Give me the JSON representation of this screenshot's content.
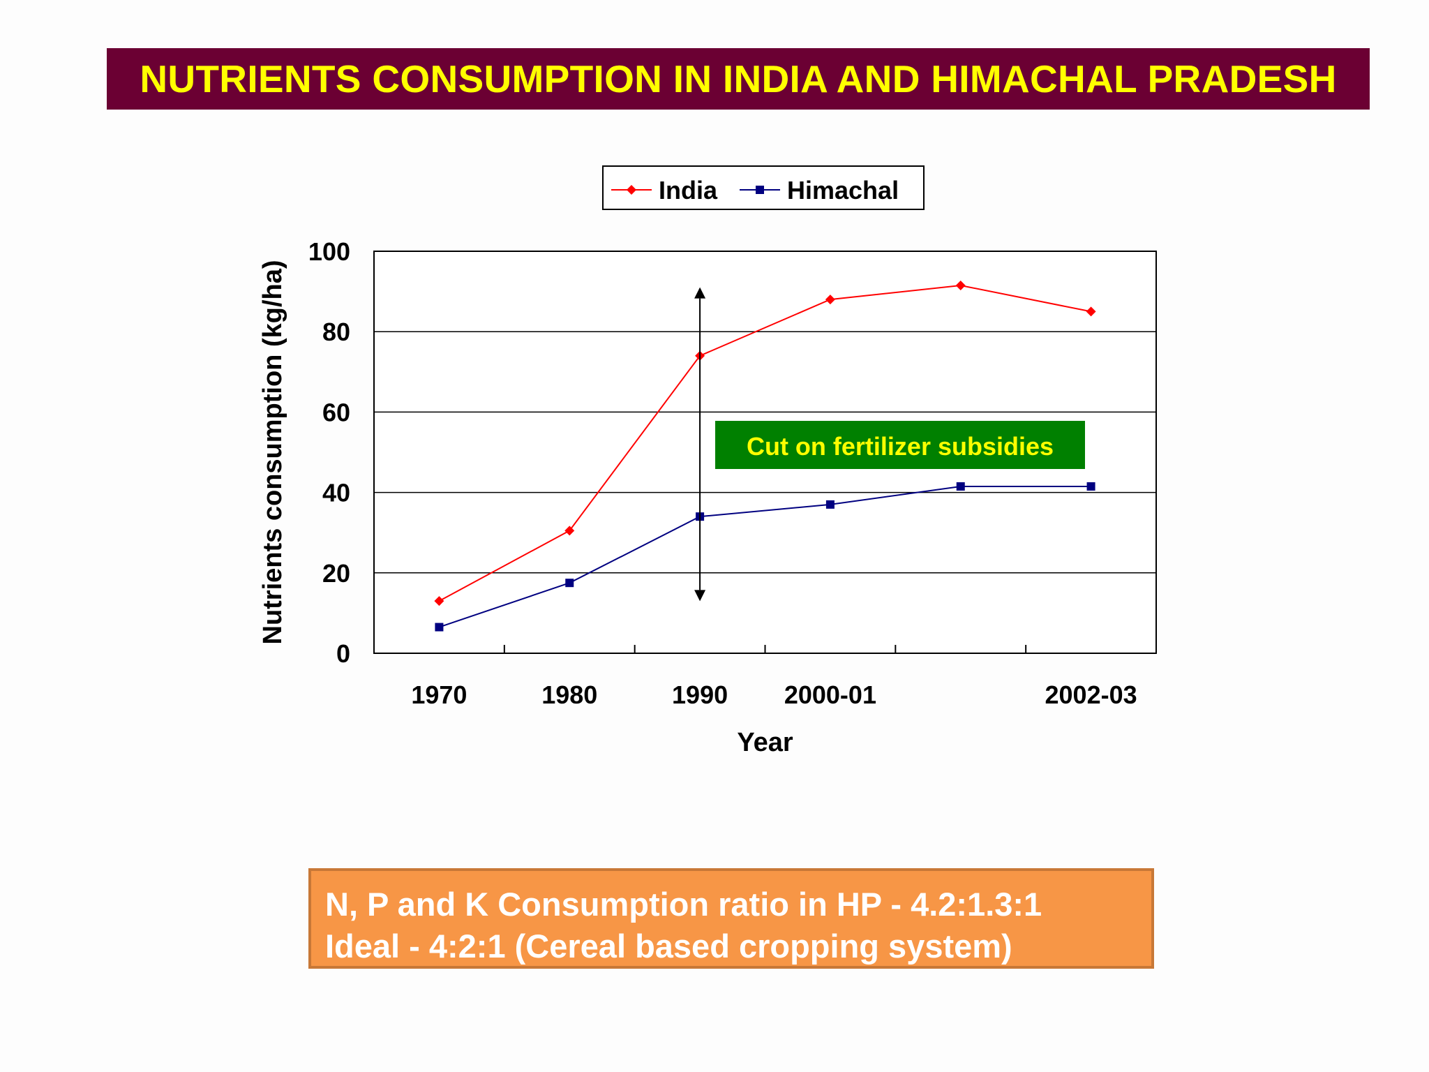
{
  "title": "NUTRIENTS CONSUMPTION IN INDIA AND HIMACHAL PRADESH",
  "info_box": {
    "line1": "N, P and K Consumption ratio in HP - 4.2:1.3:1",
    "line2": "Ideal - 4:2:1 (Cereal based cropping system)"
  },
  "chart_data": {
    "type": "line",
    "title": "",
    "xlabel": "Year",
    "ylabel": "Nutrients consumption (kg/ha)",
    "ylim": [
      0,
      100
    ],
    "yticks": [
      0,
      20,
      40,
      60,
      80,
      100
    ],
    "grid": true,
    "legend_position": "top-center",
    "categories": [
      "1970",
      "1980",
      "1990",
      "2000-01",
      "",
      "2002-03"
    ],
    "series": [
      {
        "name": "India",
        "color": "#ff0000",
        "marker": "diamond",
        "values": [
          13,
          30.5,
          74,
          88,
          91.5,
          85
        ]
      },
      {
        "name": "Himachal",
        "color": "#000080",
        "marker": "square",
        "values": [
          6.5,
          17.5,
          34,
          37,
          41.5,
          41.5
        ]
      }
    ],
    "annotations": [
      {
        "text": "Cut on fertilizer subsidies",
        "background": "#008000",
        "color": "#ffff00"
      }
    ],
    "arrow": {
      "x_category": "1990",
      "y_from": 14,
      "y_to": 90
    }
  }
}
